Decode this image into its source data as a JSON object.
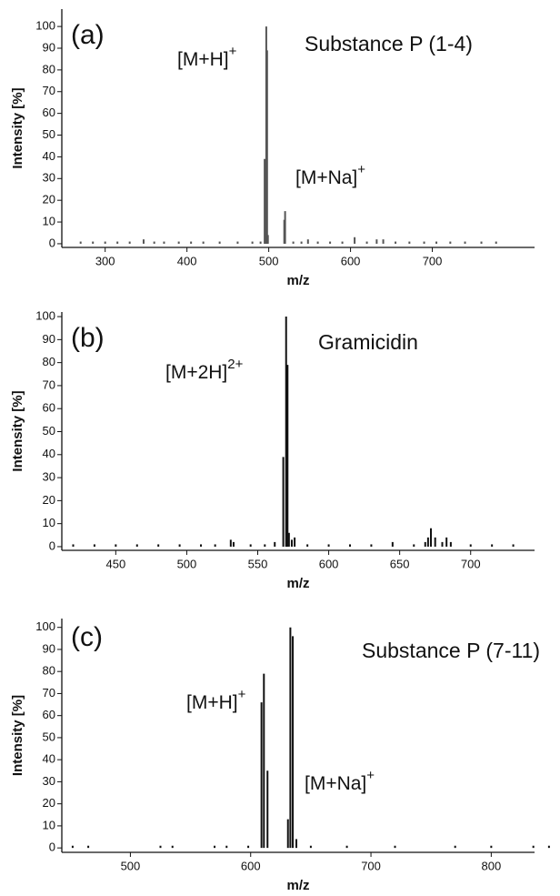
{
  "chart_data": [
    {
      "type": "bar",
      "panel": "(a)",
      "title": "Substance P (1-4)",
      "x_label": "m/z",
      "y_label": "Intensity [%]",
      "color": "#555555",
      "annotations": [
        {
          "text": "[M+H]",
          "sup": "+"
        },
        {
          "text": "[M+Na]",
          "sup": "+"
        }
      ],
      "x": [
        270,
        285,
        300,
        315,
        330,
        347,
        360,
        372,
        390,
        405,
        420,
        440,
        462,
        480,
        490,
        495,
        497,
        498,
        499,
        519,
        520,
        530,
        540,
        548,
        560,
        575,
        590,
        605,
        620,
        632,
        640,
        655,
        672,
        690,
        705,
        722,
        740,
        760,
        778
      ],
      "values": [
        1,
        1,
        1,
        1,
        1,
        2,
        1,
        1,
        1,
        1,
        1,
        1,
        1,
        1,
        1,
        39,
        100,
        89,
        4,
        11,
        15,
        1,
        1,
        2,
        1,
        1,
        1,
        3,
        1,
        2,
        2,
        1,
        1,
        1,
        1,
        1,
        1,
        1,
        1
      ],
      "xlim": [
        247,
        825
      ],
      "ylim": [
        -1.7,
        108
      ],
      "xticks": [
        300,
        400,
        500,
        600,
        700
      ],
      "yticks": [
        0,
        10,
        20,
        30,
        40,
        50,
        60,
        70,
        80,
        90,
        100
      ]
    },
    {
      "type": "bar",
      "panel": "(b)",
      "title": "Gramicidin",
      "x_label": "m/z",
      "y_label": "Intensity [%]",
      "color": "#111111",
      "annotations": [
        {
          "text": "[M+2H]",
          "sup": "2+"
        }
      ],
      "x": [
        420,
        435,
        450,
        465,
        480,
        495,
        510,
        520,
        531,
        533,
        545,
        555,
        562,
        568,
        570,
        571,
        572,
        574,
        576,
        585,
        600,
        615,
        630,
        645,
        660,
        668,
        670,
        672,
        675,
        680,
        683,
        686,
        700,
        715,
        730
      ],
      "values": [
        1,
        1,
        1,
        1,
        1,
        1,
        1,
        1,
        3,
        2,
        1,
        1,
        2,
        39,
        100,
        79,
        6,
        3,
        4,
        1,
        1,
        1,
        1,
        2,
        1,
        2,
        4,
        8,
        4,
        2,
        4,
        2,
        1,
        1,
        1
      ],
      "xlim": [
        412,
        745
      ],
      "ylim": [
        -1.6,
        102
      ],
      "xticks": [
        450,
        500,
        550,
        600,
        650,
        700
      ],
      "yticks": [
        0,
        10,
        20,
        30,
        40,
        50,
        60,
        70,
        80,
        90,
        100
      ]
    },
    {
      "type": "bar",
      "panel": "(c)",
      "title": "Substance P (7-11)",
      "x_label": "m/z",
      "y_label": "Intensity [%]",
      "color": "#111111",
      "annotations": [
        {
          "text": "[M+H]",
          "sup": "+"
        },
        {
          "text": "[M+Na]",
          "sup": "+"
        }
      ],
      "x": [
        452,
        465,
        525,
        535,
        570,
        580,
        598,
        609,
        611,
        614,
        631,
        633,
        635,
        638,
        650,
        680,
        720,
        770,
        800,
        835,
        848
      ],
      "values": [
        1,
        1,
        1,
        1,
        1,
        1,
        1,
        66,
        79,
        35,
        13,
        100,
        96,
        4,
        1,
        1,
        1,
        1,
        1,
        1,
        1
      ],
      "xlim": [
        443,
        836
      ],
      "ylim": [
        -2,
        104
      ],
      "xticks": [
        500,
        600,
        700,
        800
      ],
      "yticks": [
        0,
        10,
        20,
        30,
        40,
        50,
        60,
        70,
        80,
        90,
        100
      ]
    }
  ]
}
